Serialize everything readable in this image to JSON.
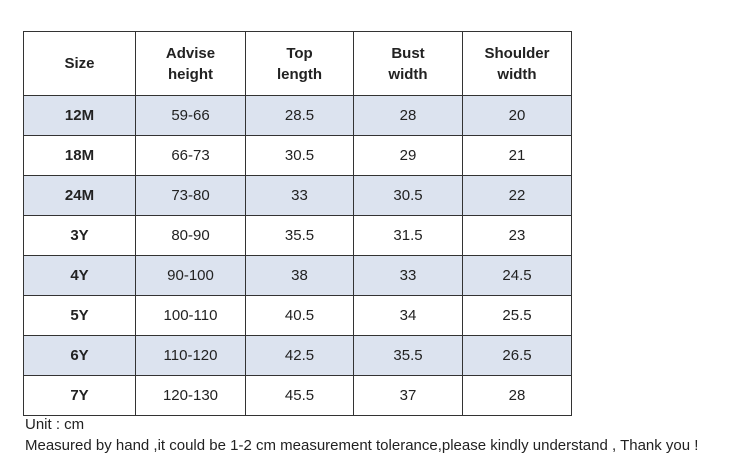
{
  "table": {
    "header": [
      "Size",
      "Advise\nheight",
      "Top\nlength",
      "Bust\nwidth",
      "Shoulder\nwidth"
    ],
    "rows": [
      [
        "12M",
        "59-66",
        "28.5",
        "28",
        "20"
      ],
      [
        "18M",
        "66-73",
        "30.5",
        "29",
        "21"
      ],
      [
        "24M",
        "73-80",
        "33",
        "30.5",
        "22"
      ],
      [
        "3Y",
        "80-90",
        "35.5",
        "31.5",
        "23"
      ],
      [
        "4Y",
        "90-100",
        "38",
        "33",
        "24.5"
      ],
      [
        "5Y",
        "100-110",
        "40.5",
        "34",
        "25.5"
      ],
      [
        "6Y",
        "110-120",
        "42.5",
        "35.5",
        "26.5"
      ],
      [
        "7Y",
        "120-130",
        "45.5",
        "37",
        "28"
      ]
    ]
  },
  "notes": [
    "Unit : cm",
    "Measured by hand ,it could be 1-2 cm measurement tolerance,please kindly understand , Thank you !"
  ]
}
